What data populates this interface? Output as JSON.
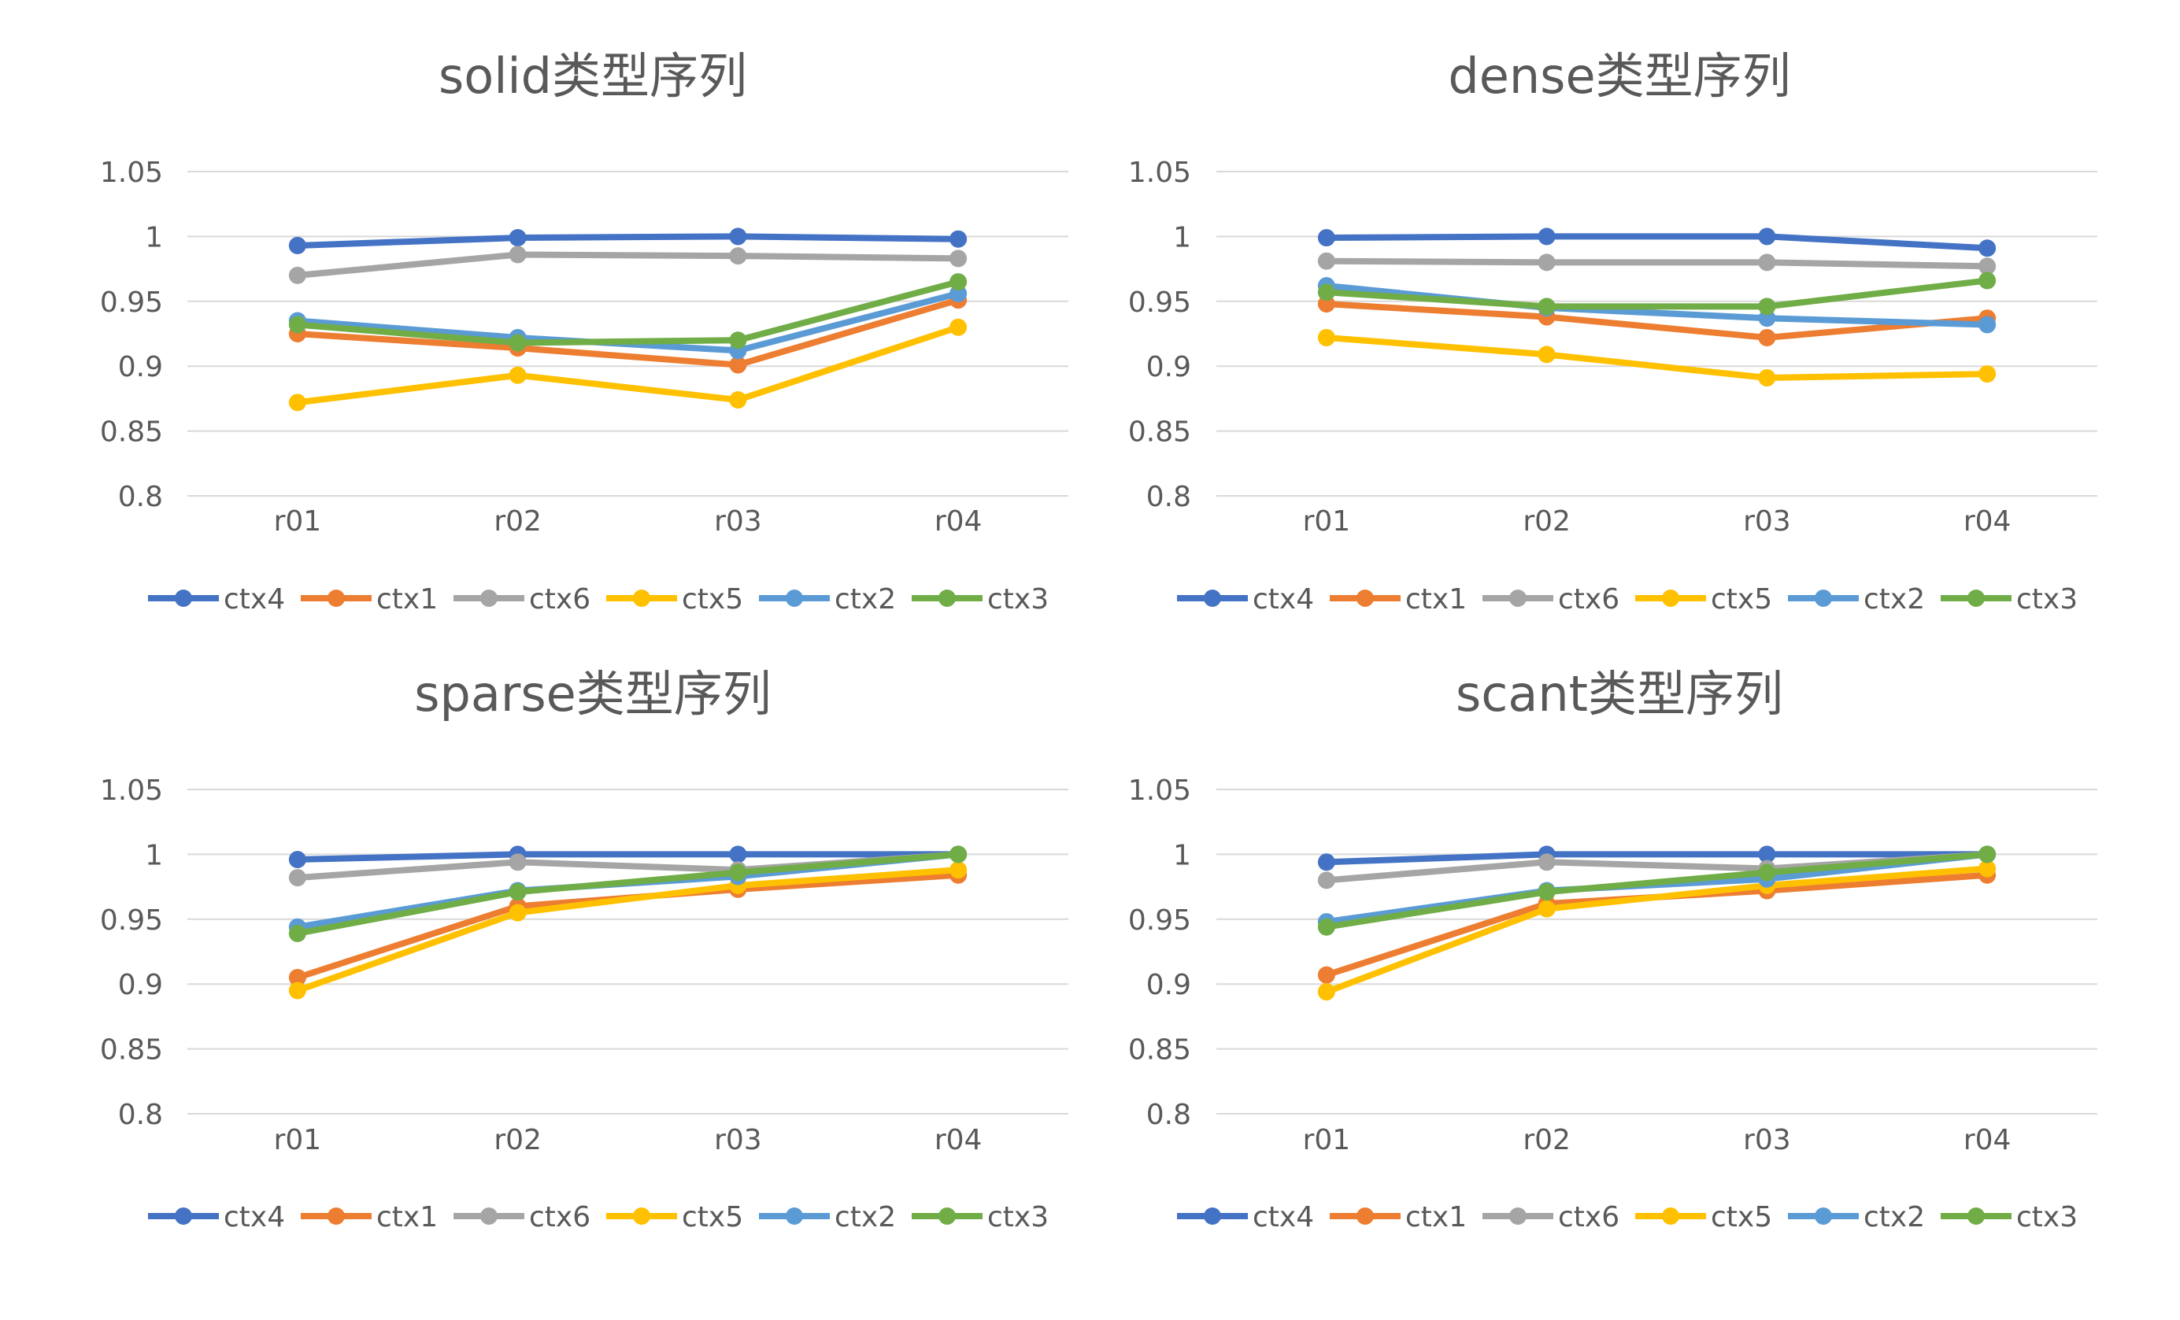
{
  "colors": {
    "ctx4": "#4472C4",
    "ctx1": "#ED7D31",
    "ctx6": "#A5A5A5",
    "ctx5": "#FFC000",
    "ctx2": "#5B9BD5",
    "ctx3": "#70AD47",
    "grid": "#D9D9D9",
    "text": "#595959"
  },
  "chart_data": [
    {
      "type": "line",
      "title": "solid类型序列",
      "categories": [
        "r01",
        "r02",
        "r03",
        "r04"
      ],
      "ylim": [
        0.8,
        1.05
      ],
      "yticks": [
        "0.8",
        "0.85",
        "0.9",
        "0.95",
        "1",
        "1.05"
      ],
      "grid": true,
      "legend": "bottom",
      "series": [
        {
          "name": "ctx4",
          "values": [
            0.993,
            0.999,
            1.0,
            0.998
          ]
        },
        {
          "name": "ctx1",
          "values": [
            0.925,
            0.914,
            0.901,
            0.951
          ]
        },
        {
          "name": "ctx6",
          "values": [
            0.97,
            0.986,
            0.985,
            0.983
          ]
        },
        {
          "name": "ctx5",
          "values": [
            0.872,
            0.893,
            0.874,
            0.93
          ]
        },
        {
          "name": "ctx2",
          "values": [
            0.935,
            0.922,
            0.912,
            0.956
          ]
        },
        {
          "name": "ctx3",
          "values": [
            0.932,
            0.918,
            0.92,
            0.965
          ]
        }
      ]
    },
    {
      "type": "line",
      "title": "dense类型序列",
      "categories": [
        "r01",
        "r02",
        "r03",
        "r04"
      ],
      "ylim": [
        0.8,
        1.05
      ],
      "yticks": [
        "0.8",
        "0.85",
        "0.9",
        "0.95",
        "1",
        "1.05"
      ],
      "grid": true,
      "legend": "bottom",
      "series": [
        {
          "name": "ctx4",
          "values": [
            0.999,
            1.0,
            1.0,
            0.991
          ]
        },
        {
          "name": "ctx1",
          "values": [
            0.948,
            0.938,
            0.922,
            0.937
          ]
        },
        {
          "name": "ctx6",
          "values": [
            0.981,
            0.98,
            0.98,
            0.977
          ]
        },
        {
          "name": "ctx5",
          "values": [
            0.922,
            0.909,
            0.891,
            0.894
          ]
        },
        {
          "name": "ctx2",
          "values": [
            0.962,
            0.945,
            0.937,
            0.932
          ]
        },
        {
          "name": "ctx3",
          "values": [
            0.957,
            0.946,
            0.946,
            0.966
          ]
        }
      ]
    },
    {
      "type": "line",
      "title": "sparse类型序列",
      "categories": [
        "r01",
        "r02",
        "r03",
        "r04"
      ],
      "ylim": [
        0.8,
        1.05
      ],
      "yticks": [
        "0.8",
        "0.85",
        "0.9",
        "0.95",
        "1",
        "1.05"
      ],
      "grid": true,
      "legend": "bottom",
      "series": [
        {
          "name": "ctx4",
          "values": [
            0.996,
            1.0,
            1.0,
            1.0
          ]
        },
        {
          "name": "ctx1",
          "values": [
            0.905,
            0.96,
            0.973,
            0.984
          ]
        },
        {
          "name": "ctx6",
          "values": [
            0.982,
            0.994,
            0.988,
            1.0
          ]
        },
        {
          "name": "ctx5",
          "values": [
            0.895,
            0.955,
            0.976,
            0.988
          ]
        },
        {
          "name": "ctx2",
          "values": [
            0.944,
            0.972,
            0.983,
            1.0
          ]
        },
        {
          "name": "ctx3",
          "values": [
            0.939,
            0.971,
            0.986,
            1.0
          ]
        }
      ]
    },
    {
      "type": "line",
      "title": "scant类型序列",
      "categories": [
        "r01",
        "r02",
        "r03",
        "r04"
      ],
      "ylim": [
        0.8,
        1.05
      ],
      "yticks": [
        "0.8",
        "0.85",
        "0.9",
        "0.95",
        "1",
        "1.05"
      ],
      "grid": true,
      "legend": "bottom",
      "series": [
        {
          "name": "ctx4",
          "values": [
            0.994,
            1.0,
            1.0,
            1.0
          ]
        },
        {
          "name": "ctx1",
          "values": [
            0.907,
            0.962,
            0.972,
            0.984
          ]
        },
        {
          "name": "ctx6",
          "values": [
            0.98,
            0.994,
            0.989,
            1.0
          ]
        },
        {
          "name": "ctx5",
          "values": [
            0.894,
            0.958,
            0.976,
            0.989
          ]
        },
        {
          "name": "ctx2",
          "values": [
            0.948,
            0.972,
            0.981,
            1.0
          ]
        },
        {
          "name": "ctx3",
          "values": [
            0.944,
            0.971,
            0.986,
            1.0
          ]
        }
      ]
    }
  ]
}
